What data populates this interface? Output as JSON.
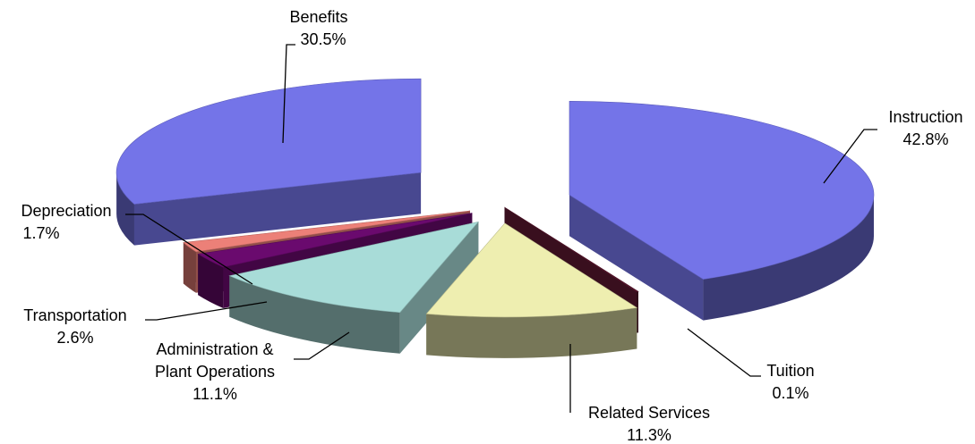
{
  "chart_data": {
    "type": "pie",
    "style": "3d-exploded",
    "slices": [
      {
        "label": "Instruction",
        "value": 42.8,
        "value_text": "42.8%",
        "color": "#7474e8"
      },
      {
        "label": "Tuition",
        "value": 0.1,
        "value_text": "0.1%",
        "color": "#5c1830"
      },
      {
        "label": "Related Services",
        "value": 11.3,
        "value_text": "11.3%",
        "color": "#eeeeb0"
      },
      {
        "label": "Administration & Plant Operations",
        "label_lines": [
          "Administration &",
          "Plant Operations"
        ],
        "value": 11.1,
        "value_text": "11.1%",
        "color": "#a8dcd8"
      },
      {
        "label": "Transportation",
        "value": 2.6,
        "value_text": "2.6%",
        "color": "#6a0a6e"
      },
      {
        "label": "Depreciation",
        "value": 1.7,
        "value_text": "1.7%",
        "color": "#ec8078"
      },
      {
        "label": "Benefits",
        "value": 30.5,
        "value_text": "30.5%",
        "color": "#7474e8"
      }
    ]
  }
}
